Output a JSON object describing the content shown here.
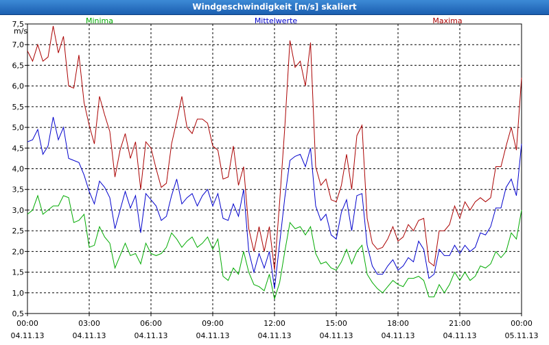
{
  "window": {
    "title": "Windgeschwindigkeit [m/s] skaliert"
  },
  "chart_data": {
    "type": "line",
    "title": "Windgeschwindigkeit [m/s] skaliert",
    "ylabel": "m/s",
    "ylim": [
      0.5,
      7.5
    ],
    "yticks": [
      "0,5",
      "1,0",
      "1,5",
      "2,0",
      "2,5",
      "3,0",
      "3,5",
      "4,0",
      "4,5",
      "5,0",
      "5,5",
      "6,0",
      "6,5",
      "7,0",
      "7,5"
    ],
    "xlim": [
      0,
      24
    ],
    "xticks": [
      {
        "time": "00:00",
        "date": "04.11.13"
      },
      {
        "time": "03:00",
        "date": "04.11.13"
      },
      {
        "time": "06:00",
        "date": "04.11.13"
      },
      {
        "time": "09:00",
        "date": "04.11.13"
      },
      {
        "time": "12:00",
        "date": "04.11.13"
      },
      {
        "time": "15:00",
        "date": "04.11.13"
      },
      {
        "time": "18:00",
        "date": "04.11.13"
      },
      {
        "time": "21:00",
        "date": "04.11.13"
      },
      {
        "time": "00:00",
        "date": "05.11.13"
      }
    ],
    "grid": true,
    "legend_placement": "top",
    "series": [
      {
        "name": "Minima",
        "color": "#00aa00",
        "points": [
          [
            0,
            2.9
          ],
          [
            0.25,
            3.0
          ],
          [
            0.5,
            3.35
          ],
          [
            0.75,
            2.9
          ],
          [
            1,
            3.0
          ],
          [
            1.25,
            3.1
          ],
          [
            1.5,
            3.1
          ],
          [
            1.75,
            3.35
          ],
          [
            2,
            3.3
          ],
          [
            2.25,
            2.7
          ],
          [
            2.5,
            2.75
          ],
          [
            2.75,
            2.9
          ],
          [
            3,
            2.1
          ],
          [
            3.25,
            2.15
          ],
          [
            3.5,
            2.6
          ],
          [
            3.75,
            2.35
          ],
          [
            4,
            2.2
          ],
          [
            4.25,
            1.6
          ],
          [
            4.5,
            1.9
          ],
          [
            4.75,
            2.2
          ],
          [
            5,
            1.9
          ],
          [
            5.25,
            1.95
          ],
          [
            5.5,
            1.7
          ],
          [
            5.75,
            2.2
          ],
          [
            6,
            1.95
          ],
          [
            6.25,
            1.9
          ],
          [
            6.5,
            1.95
          ],
          [
            6.75,
            2.1
          ],
          [
            7,
            2.45
          ],
          [
            7.25,
            2.3
          ],
          [
            7.5,
            2.1
          ],
          [
            7.75,
            2.25
          ],
          [
            8,
            2.35
          ],
          [
            8.25,
            2.1
          ],
          [
            8.5,
            2.2
          ],
          [
            8.75,
            2.35
          ],
          [
            9,
            2.05
          ],
          [
            9.25,
            2.3
          ],
          [
            9.5,
            1.4
          ],
          [
            9.75,
            1.3
          ],
          [
            10,
            1.6
          ],
          [
            10.25,
            1.45
          ],
          [
            10.5,
            2.0
          ],
          [
            10.75,
            1.5
          ],
          [
            11,
            1.2
          ],
          [
            11.25,
            1.15
          ],
          [
            11.5,
            1.05
          ],
          [
            11.75,
            1.45
          ],
          [
            12,
            0.85
          ],
          [
            12.25,
            1.25
          ],
          [
            12.5,
            2.0
          ],
          [
            12.75,
            2.7
          ],
          [
            13,
            2.55
          ],
          [
            13.25,
            2.6
          ],
          [
            13.5,
            2.4
          ],
          [
            13.75,
            2.6
          ],
          [
            14,
            1.95
          ],
          [
            14.25,
            1.7
          ],
          [
            14.5,
            1.75
          ],
          [
            14.75,
            1.6
          ],
          [
            15,
            1.55
          ],
          [
            15.25,
            1.75
          ],
          [
            15.5,
            2.05
          ],
          [
            15.75,
            1.7
          ],
          [
            16,
            2.0
          ],
          [
            16.25,
            2.15
          ],
          [
            16.5,
            1.45
          ],
          [
            16.75,
            1.25
          ],
          [
            17,
            1.1
          ],
          [
            17.25,
            1.0
          ],
          [
            17.5,
            1.15
          ],
          [
            17.75,
            1.3
          ],
          [
            18,
            1.2
          ],
          [
            18.25,
            1.15
          ],
          [
            18.5,
            1.35
          ],
          [
            18.75,
            1.35
          ],
          [
            19,
            1.4
          ],
          [
            19.25,
            1.3
          ],
          [
            19.5,
            0.9
          ],
          [
            19.75,
            0.9
          ],
          [
            20,
            1.2
          ],
          [
            20.25,
            1.0
          ],
          [
            20.5,
            1.2
          ],
          [
            20.75,
            1.5
          ],
          [
            21,
            1.3
          ],
          [
            21.25,
            1.5
          ],
          [
            21.5,
            1.3
          ],
          [
            21.75,
            1.4
          ],
          [
            22,
            1.65
          ],
          [
            22.25,
            1.6
          ],
          [
            22.5,
            1.7
          ],
          [
            22.75,
            2.0
          ],
          [
            23,
            1.85
          ],
          [
            23.25,
            2.0
          ],
          [
            23.5,
            2.45
          ],
          [
            23.75,
            2.3
          ],
          [
            24,
            3.0
          ]
        ]
      },
      {
        "name": "Mittelwerte",
        "color": "#0000cc",
        "points": [
          [
            0,
            4.65
          ],
          [
            0.25,
            4.7
          ],
          [
            0.5,
            4.95
          ],
          [
            0.75,
            4.35
          ],
          [
            1,
            4.55
          ],
          [
            1.25,
            5.25
          ],
          [
            1.5,
            4.7
          ],
          [
            1.75,
            5.0
          ],
          [
            2,
            4.25
          ],
          [
            2.25,
            4.2
          ],
          [
            2.5,
            4.15
          ],
          [
            2.75,
            3.85
          ],
          [
            3,
            3.45
          ],
          [
            3.25,
            3.15
          ],
          [
            3.5,
            3.7
          ],
          [
            3.75,
            3.55
          ],
          [
            4,
            3.3
          ],
          [
            4.25,
            2.55
          ],
          [
            4.5,
            3.0
          ],
          [
            4.75,
            3.45
          ],
          [
            5,
            3.05
          ],
          [
            5.25,
            3.35
          ],
          [
            5.5,
            2.45
          ],
          [
            5.75,
            3.4
          ],
          [
            6,
            3.25
          ],
          [
            6.25,
            3.1
          ],
          [
            6.5,
            2.75
          ],
          [
            6.75,
            2.85
          ],
          [
            7,
            3.35
          ],
          [
            7.25,
            3.75
          ],
          [
            7.5,
            3.15
          ],
          [
            7.75,
            3.3
          ],
          [
            8,
            3.4
          ],
          [
            8.25,
            3.1
          ],
          [
            8.5,
            3.35
          ],
          [
            8.75,
            3.5
          ],
          [
            9,
            3.1
          ],
          [
            9.25,
            3.4
          ],
          [
            9.5,
            2.8
          ],
          [
            9.75,
            2.75
          ],
          [
            10,
            3.15
          ],
          [
            10.25,
            2.85
          ],
          [
            10.5,
            3.5
          ],
          [
            10.75,
            2.0
          ],
          [
            11,
            1.5
          ],
          [
            11.25,
            1.95
          ],
          [
            11.5,
            1.6
          ],
          [
            11.75,
            2.0
          ],
          [
            12,
            1.1
          ],
          [
            12.25,
            2.2
          ],
          [
            12.5,
            3.3
          ],
          [
            12.75,
            4.2
          ],
          [
            13,
            4.3
          ],
          [
            13.25,
            4.35
          ],
          [
            13.5,
            4.05
          ],
          [
            13.75,
            4.5
          ],
          [
            14,
            3.1
          ],
          [
            14.25,
            2.75
          ],
          [
            14.5,
            2.9
          ],
          [
            14.75,
            2.4
          ],
          [
            15,
            2.3
          ],
          [
            15.25,
            2.95
          ],
          [
            15.5,
            3.25
          ],
          [
            15.75,
            2.5
          ],
          [
            16,
            3.35
          ],
          [
            16.25,
            3.4
          ],
          [
            16.5,
            2.15
          ],
          [
            16.75,
            1.65
          ],
          [
            17,
            1.45
          ],
          [
            17.25,
            1.45
          ],
          [
            17.5,
            1.65
          ],
          [
            17.75,
            1.8
          ],
          [
            18,
            1.55
          ],
          [
            18.25,
            1.65
          ],
          [
            18.5,
            1.85
          ],
          [
            18.75,
            1.75
          ],
          [
            19,
            2.25
          ],
          [
            19.25,
            2.05
          ],
          [
            19.5,
            1.35
          ],
          [
            19.75,
            1.45
          ],
          [
            20,
            2.05
          ],
          [
            20.25,
            1.9
          ],
          [
            20.5,
            1.9
          ],
          [
            20.75,
            2.15
          ],
          [
            21,
            1.95
          ],
          [
            21.25,
            2.15
          ],
          [
            21.5,
            2.0
          ],
          [
            21.75,
            2.1
          ],
          [
            22,
            2.45
          ],
          [
            22.25,
            2.4
          ],
          [
            22.5,
            2.6
          ],
          [
            22.75,
            3.05
          ],
          [
            23,
            3.05
          ],
          [
            23.25,
            3.55
          ],
          [
            23.5,
            3.75
          ],
          [
            23.75,
            3.35
          ],
          [
            24,
            4.6
          ]
        ]
      },
      {
        "name": "Maxima",
        "color": "#aa0000",
        "points": [
          [
            0,
            6.85
          ],
          [
            0.25,
            6.6
          ],
          [
            0.5,
            7.0
          ],
          [
            0.75,
            6.6
          ],
          [
            1,
            6.7
          ],
          [
            1.25,
            7.45
          ],
          [
            1.5,
            6.8
          ],
          [
            1.75,
            7.2
          ],
          [
            2,
            6.0
          ],
          [
            2.25,
            5.95
          ],
          [
            2.5,
            6.75
          ],
          [
            2.75,
            5.6
          ],
          [
            3,
            5.05
          ],
          [
            3.25,
            4.6
          ],
          [
            3.5,
            5.75
          ],
          [
            3.75,
            5.3
          ],
          [
            4,
            4.9
          ],
          [
            4.25,
            3.8
          ],
          [
            4.5,
            4.45
          ],
          [
            4.75,
            4.85
          ],
          [
            5,
            4.25
          ],
          [
            5.25,
            4.65
          ],
          [
            5.5,
            3.5
          ],
          [
            5.75,
            4.65
          ],
          [
            6,
            4.5
          ],
          [
            6.25,
            4.0
          ],
          [
            6.5,
            3.55
          ],
          [
            6.75,
            3.65
          ],
          [
            7,
            4.6
          ],
          [
            7.25,
            5.15
          ],
          [
            7.5,
            5.75
          ],
          [
            7.75,
            5.0
          ],
          [
            8,
            4.85
          ],
          [
            8.25,
            5.2
          ],
          [
            8.5,
            5.2
          ],
          [
            8.75,
            5.1
          ],
          [
            9,
            4.55
          ],
          [
            9.25,
            4.45
          ],
          [
            9.5,
            3.75
          ],
          [
            9.75,
            3.8
          ],
          [
            10,
            4.55
          ],
          [
            10.25,
            3.6
          ],
          [
            10.5,
            4.05
          ],
          [
            10.75,
            2.55
          ],
          [
            11,
            2.0
          ],
          [
            11.25,
            2.6
          ],
          [
            11.5,
            2.0
          ],
          [
            11.75,
            2.6
          ],
          [
            12,
            1.55
          ],
          [
            12.25,
            3.2
          ],
          [
            12.5,
            5.0
          ],
          [
            12.75,
            7.1
          ],
          [
            13,
            6.45
          ],
          [
            13.25,
            6.6
          ],
          [
            13.5,
            6.0
          ],
          [
            13.75,
            7.05
          ],
          [
            14,
            4.05
          ],
          [
            14.25,
            3.6
          ],
          [
            14.5,
            3.75
          ],
          [
            14.75,
            3.25
          ],
          [
            15,
            3.2
          ],
          [
            15.25,
            3.6
          ],
          [
            15.5,
            4.35
          ],
          [
            15.75,
            3.5
          ],
          [
            16,
            4.8
          ],
          [
            16.25,
            5.05
          ],
          [
            16.5,
            2.8
          ],
          [
            16.75,
            2.2
          ],
          [
            17,
            2.05
          ],
          [
            17.25,
            2.1
          ],
          [
            17.5,
            2.3
          ],
          [
            17.75,
            2.6
          ],
          [
            18,
            2.25
          ],
          [
            18.25,
            2.35
          ],
          [
            18.5,
            2.65
          ],
          [
            18.75,
            2.5
          ],
          [
            19,
            2.75
          ],
          [
            19.25,
            2.8
          ],
          [
            19.5,
            1.75
          ],
          [
            19.75,
            1.65
          ],
          [
            20,
            2.5
          ],
          [
            20.25,
            2.5
          ],
          [
            20.5,
            2.65
          ],
          [
            20.75,
            3.1
          ],
          [
            21,
            2.8
          ],
          [
            21.25,
            3.2
          ],
          [
            21.5,
            3.0
          ],
          [
            21.75,
            3.2
          ],
          [
            22,
            3.3
          ],
          [
            22.25,
            3.2
          ],
          [
            22.5,
            3.3
          ],
          [
            22.75,
            4.05
          ],
          [
            23,
            4.05
          ],
          [
            23.25,
            4.55
          ],
          [
            23.5,
            5.0
          ],
          [
            23.75,
            4.45
          ],
          [
            24,
            6.2
          ]
        ]
      }
    ]
  }
}
